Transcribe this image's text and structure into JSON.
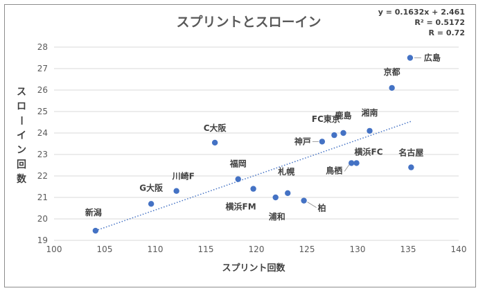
{
  "chart_data": {
    "type": "scatter",
    "title": "スプリントとスローイン",
    "xlabel": "スプリント回数",
    "ylabel": "スローイン回数",
    "xlim": [
      100,
      140
    ],
    "ylim": [
      19,
      28
    ],
    "xticks": [
      100,
      105,
      110,
      115,
      120,
      125,
      130,
      135,
      140
    ],
    "yticks": [
      19,
      20,
      21,
      22,
      23,
      24,
      25,
      26,
      27,
      28
    ],
    "grid": "horizontal",
    "point_color": "#4472c4",
    "trendline": {
      "slope": 0.1632,
      "intercept": 2.461,
      "color": "#4472c4",
      "style": "dotted"
    },
    "annotations": [
      "y = 0.1632x + 2.461",
      "R² = 0.5172",
      "R = 0.72"
    ],
    "points": [
      {
        "label": "新潟",
        "x": 104.1,
        "y": 19.45
      },
      {
        "label": "G大阪",
        "x": 109.6,
        "y": 20.7
      },
      {
        "label": "川崎F",
        "x": 112.1,
        "y": 21.3
      },
      {
        "label": "C大阪",
        "x": 115.9,
        "y": 23.55
      },
      {
        "label": "福岡",
        "x": 118.2,
        "y": 21.85
      },
      {
        "label": "横浜FM",
        "x": 119.7,
        "y": 21.4
      },
      {
        "label": "浦和",
        "x": 121.9,
        "y": 21.0
      },
      {
        "label": "札幌",
        "x": 123.1,
        "y": 21.2
      },
      {
        "label": "柏",
        "x": 124.7,
        "y": 20.85
      },
      {
        "label": "神戸",
        "x": 126.5,
        "y": 23.6
      },
      {
        "label": "FC東京",
        "x": 127.7,
        "y": 23.9
      },
      {
        "label": "鹿島",
        "x": 128.6,
        "y": 24.0
      },
      {
        "label": "鳥栖",
        "x": 129.4,
        "y": 22.6
      },
      {
        "label": "横浜FC",
        "x": 129.9,
        "y": 22.6
      },
      {
        "label": "湘南",
        "x": 131.2,
        "y": 24.1
      },
      {
        "label": "京都",
        "x": 133.4,
        "y": 26.1
      },
      {
        "label": "広島",
        "x": 135.2,
        "y": 27.5
      },
      {
        "label": "名古屋",
        "x": 135.3,
        "y": 22.4
      }
    ]
  }
}
